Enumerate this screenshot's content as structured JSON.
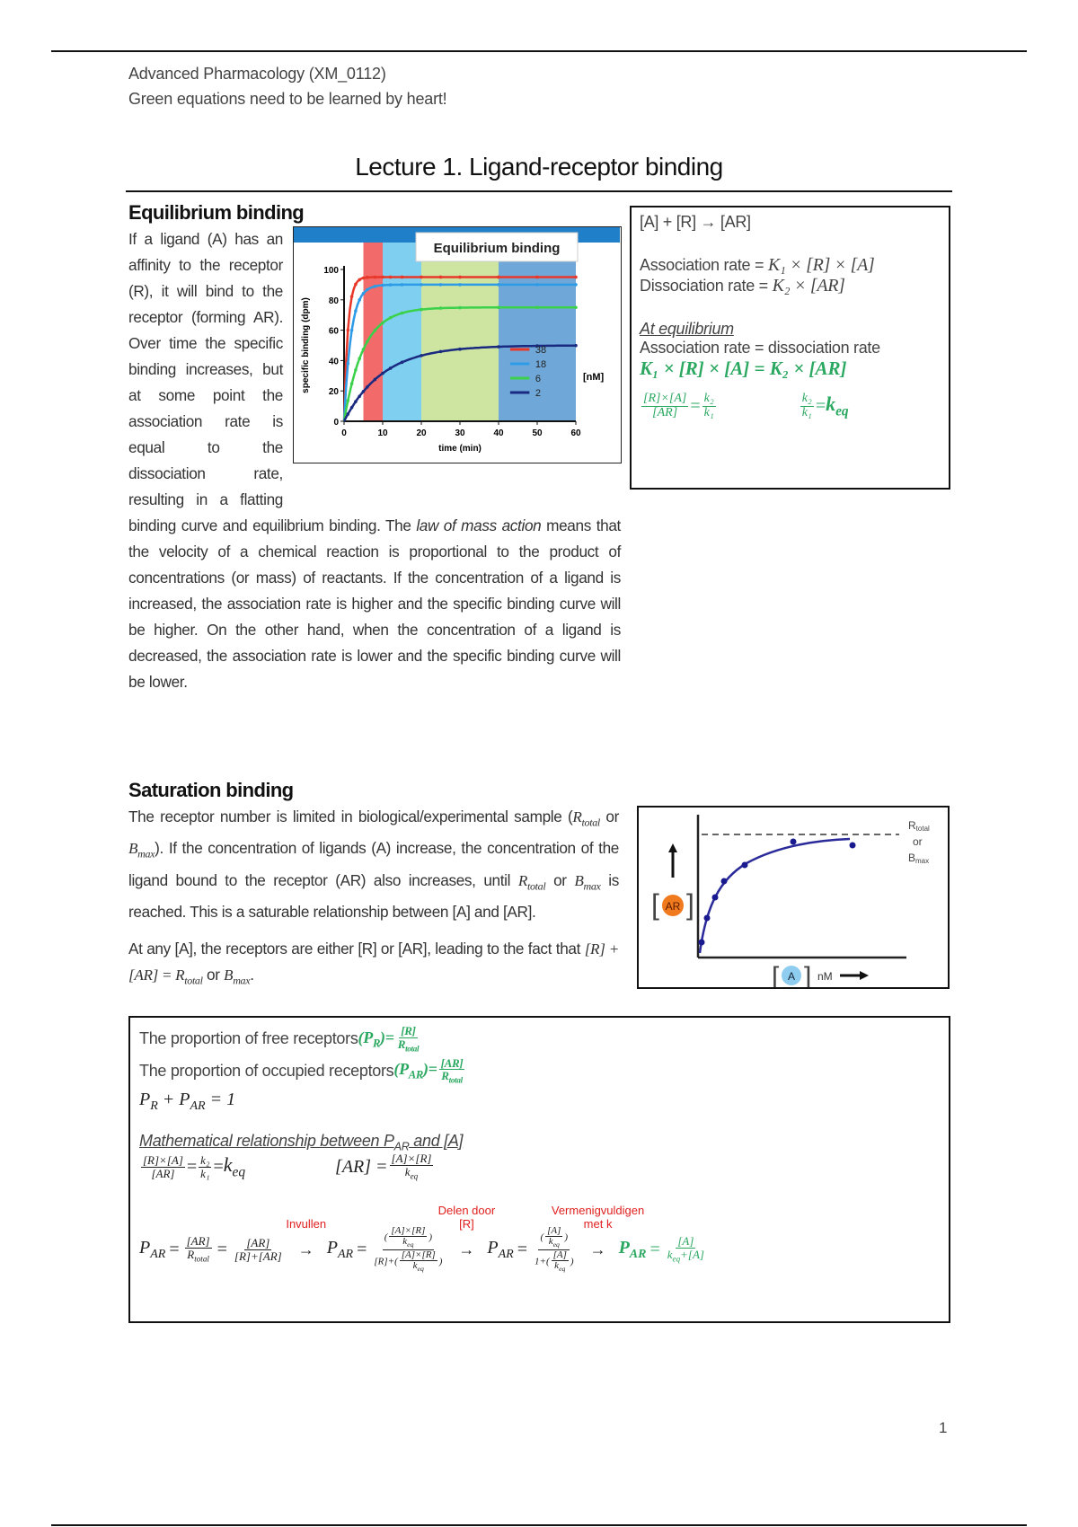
{
  "header": {
    "course": "Advanced Pharmacology (XM_0112)",
    "note": "Green equations need to be learned by heart!"
  },
  "title": "Lecture 1. Ligand-receptor binding",
  "equilibrium": {
    "heading": "Equilibrium binding",
    "paragraph_a": "If a ligand (A) has an affinity to the receptor (R), it will bind to the receptor (forming AR). Over time the specific binding increases, but at some point the association rate is equal to the dissociation rate, resulting in a flatting binding curve and equilibrium binding. The ",
    "paragraph_em": "law of mass action",
    "paragraph_b": " means that the velocity of a chemical reaction is proportional to the product of concentrations (or mass) of reactants. If the concentration of a ligand is increased, the association rate is higher and the specific binding curve will be higher. On the other hand, when the concentration of a ligand is decreased, the association rate is lower and the specific binding curve will be lower.",
    "box": {
      "reaction": "[A] + [R] → [AR]",
      "assoc_label": "Association rate = ",
      "assoc_eq": "K₁ × [R] × [A]",
      "dissoc_label": "Dissociation rate = ",
      "dissoc_eq": "K₂ × [AR]",
      "at_eq": "At equilibrium",
      "eq_statement": "Association rate = dissociation rate",
      "green_eq": "K₁ × [R] × [A] = K₂ × [AR]",
      "frac1_num": "[R]×[A]",
      "frac1_den": "[AR]",
      "k2": "k₂",
      "k1": "k₁",
      "keq": "k",
      "keq_sub": "eq"
    }
  },
  "chart_data": {
    "type": "line",
    "title": "Equilibrium binding",
    "xlabel": "time (min)",
    "ylabel": "specific binding (dpm)",
    "xlim": [
      0,
      60
    ],
    "ylim": [
      0,
      100
    ],
    "xticks": [
      "0",
      "10",
      "20",
      "30",
      "40",
      "50",
      "60"
    ],
    "yticks": [
      "0",
      "20",
      "40",
      "60",
      "80",
      "100"
    ],
    "legend_unit": "[nM]",
    "legend_position": "bottom-right",
    "bands": [
      {
        "from": 5,
        "to": 10,
        "color": "#f26a6a"
      },
      {
        "from": 10,
        "to": 20,
        "color": "#7fd0f0"
      },
      {
        "from": 20,
        "to": 40,
        "color": "#cde5a0"
      },
      {
        "from": 40,
        "to": 60,
        "color": "#6fa8d8"
      }
    ],
    "series": [
      {
        "name": "38",
        "color": "#e8382a",
        "plateau": 95
      },
      {
        "name": "18",
        "color": "#2e9be6",
        "plateau": 90
      },
      {
        "name": "6",
        "color": "#3cd14a",
        "plateau": 75
      },
      {
        "name": "2",
        "color": "#1a2a80",
        "plateau": 50
      }
    ]
  },
  "saturation": {
    "heading": "Saturation binding",
    "p1_a": "The receptor number is limited in biological/experimental sample (",
    "rtotal": "R",
    "rtotal_sub": "total",
    "p1_or": " or ",
    "bmax": "B",
    "bmax_sub": "max",
    "p1_b": "). If the concentration of ligands (A) increase, the concentration of the ligand bound to the receptor (AR) also increases, until ",
    "p1_c": " is reached. This is a saturable relationship between [A] and [AR].",
    "p2_a": "At any [A], the receptors are either [R] or [AR], leading to the fact that ",
    "p2_eq": "[R] + [AR] = ",
    "figure": {
      "rtotal_label": "R",
      "rtotal_label_sub": "total",
      "or": "or",
      "bmax_label": "B",
      "bmax_label_sub": "max",
      "ar": "AR",
      "a": "A",
      "unit": "nM",
      "ar_color": "#f07a1e",
      "a_color": "#8fcdf0"
    }
  },
  "derivation": {
    "pr_text": "The proportion of free receptors ",
    "pr_sym": "(P",
    "pr_sub": "R",
    "pr_close": ")=",
    "pr_num": "[R]",
    "par_text": "The proportion of occupied receptors ",
    "par_sub": "AR",
    "par_num": "[AR]",
    "sum_eq": "P",
    "sum_rest": " = 1",
    "math_rel": "Mathematical relationship between P",
    "math_rel_end": " and [A]",
    "ar_eq_lhs": "[AR] = ",
    "ar_eq_num": "[A]×[R]",
    "step_labels": [
      "Invullen",
      "Delen door [R]",
      "Vermenigvuldigen met k"
    ],
    "r_plus_ar": "[R]+[AR]",
    "a_over": "[A]",
    "r_plus": "[R]+",
    "one_plus": "1+",
    "final_den": "+[A]",
    "arrow": "→"
  },
  "page_number": "1"
}
